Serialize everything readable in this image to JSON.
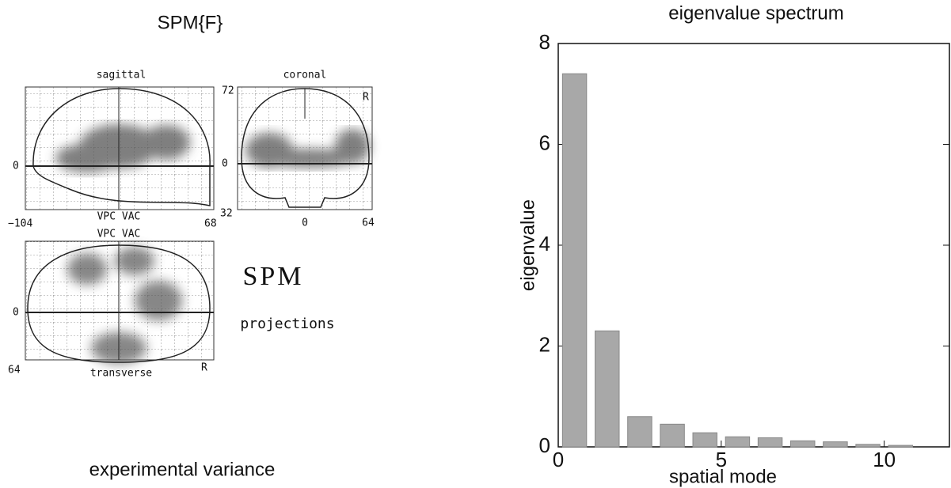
{
  "chart_data": {
    "type": "bar",
    "title": "eigenvalue spectrum",
    "x_label": "spatial mode",
    "y_label": "eigenvalue",
    "x": [
      0.5,
      1.5,
      2.5,
      3.5,
      4.5,
      5.5,
      6.5,
      7.5,
      8.5,
      9.5,
      10.5
    ],
    "values": [
      7.4,
      2.3,
      0.6,
      0.45,
      0.28,
      0.2,
      0.18,
      0.12,
      0.1,
      0.05,
      0.03
    ],
    "color": "#a8a8a8",
    "xlim": [
      0,
      12
    ],
    "ylim": [
      0,
      8
    ],
    "xticks": [
      0,
      5,
      10
    ],
    "yticks": [
      0,
      2,
      4,
      6,
      8
    ]
  },
  "projections": {
    "title": "SPM{F}",
    "sagittal": "sagittal",
    "coronal": "coronal",
    "transverse": "transverse",
    "sag_top": "72",
    "sag_zero": "0",
    "cor_zero": "0",
    "sag_bottom": "32",
    "sag_x_left": "−104",
    "sag_x_right": "68",
    "sag_vpc": "VPC VAC",
    "tra_vpc": "VPC VAC",
    "cor_x_zero": "0",
    "cor_x_right": "64",
    "tra_zero": "0",
    "tra_bottom": "64",
    "cor_r": "R",
    "tra_r": "R",
    "logo": "SPM",
    "logo_sub": "projections",
    "caption": "experimental variance"
  }
}
